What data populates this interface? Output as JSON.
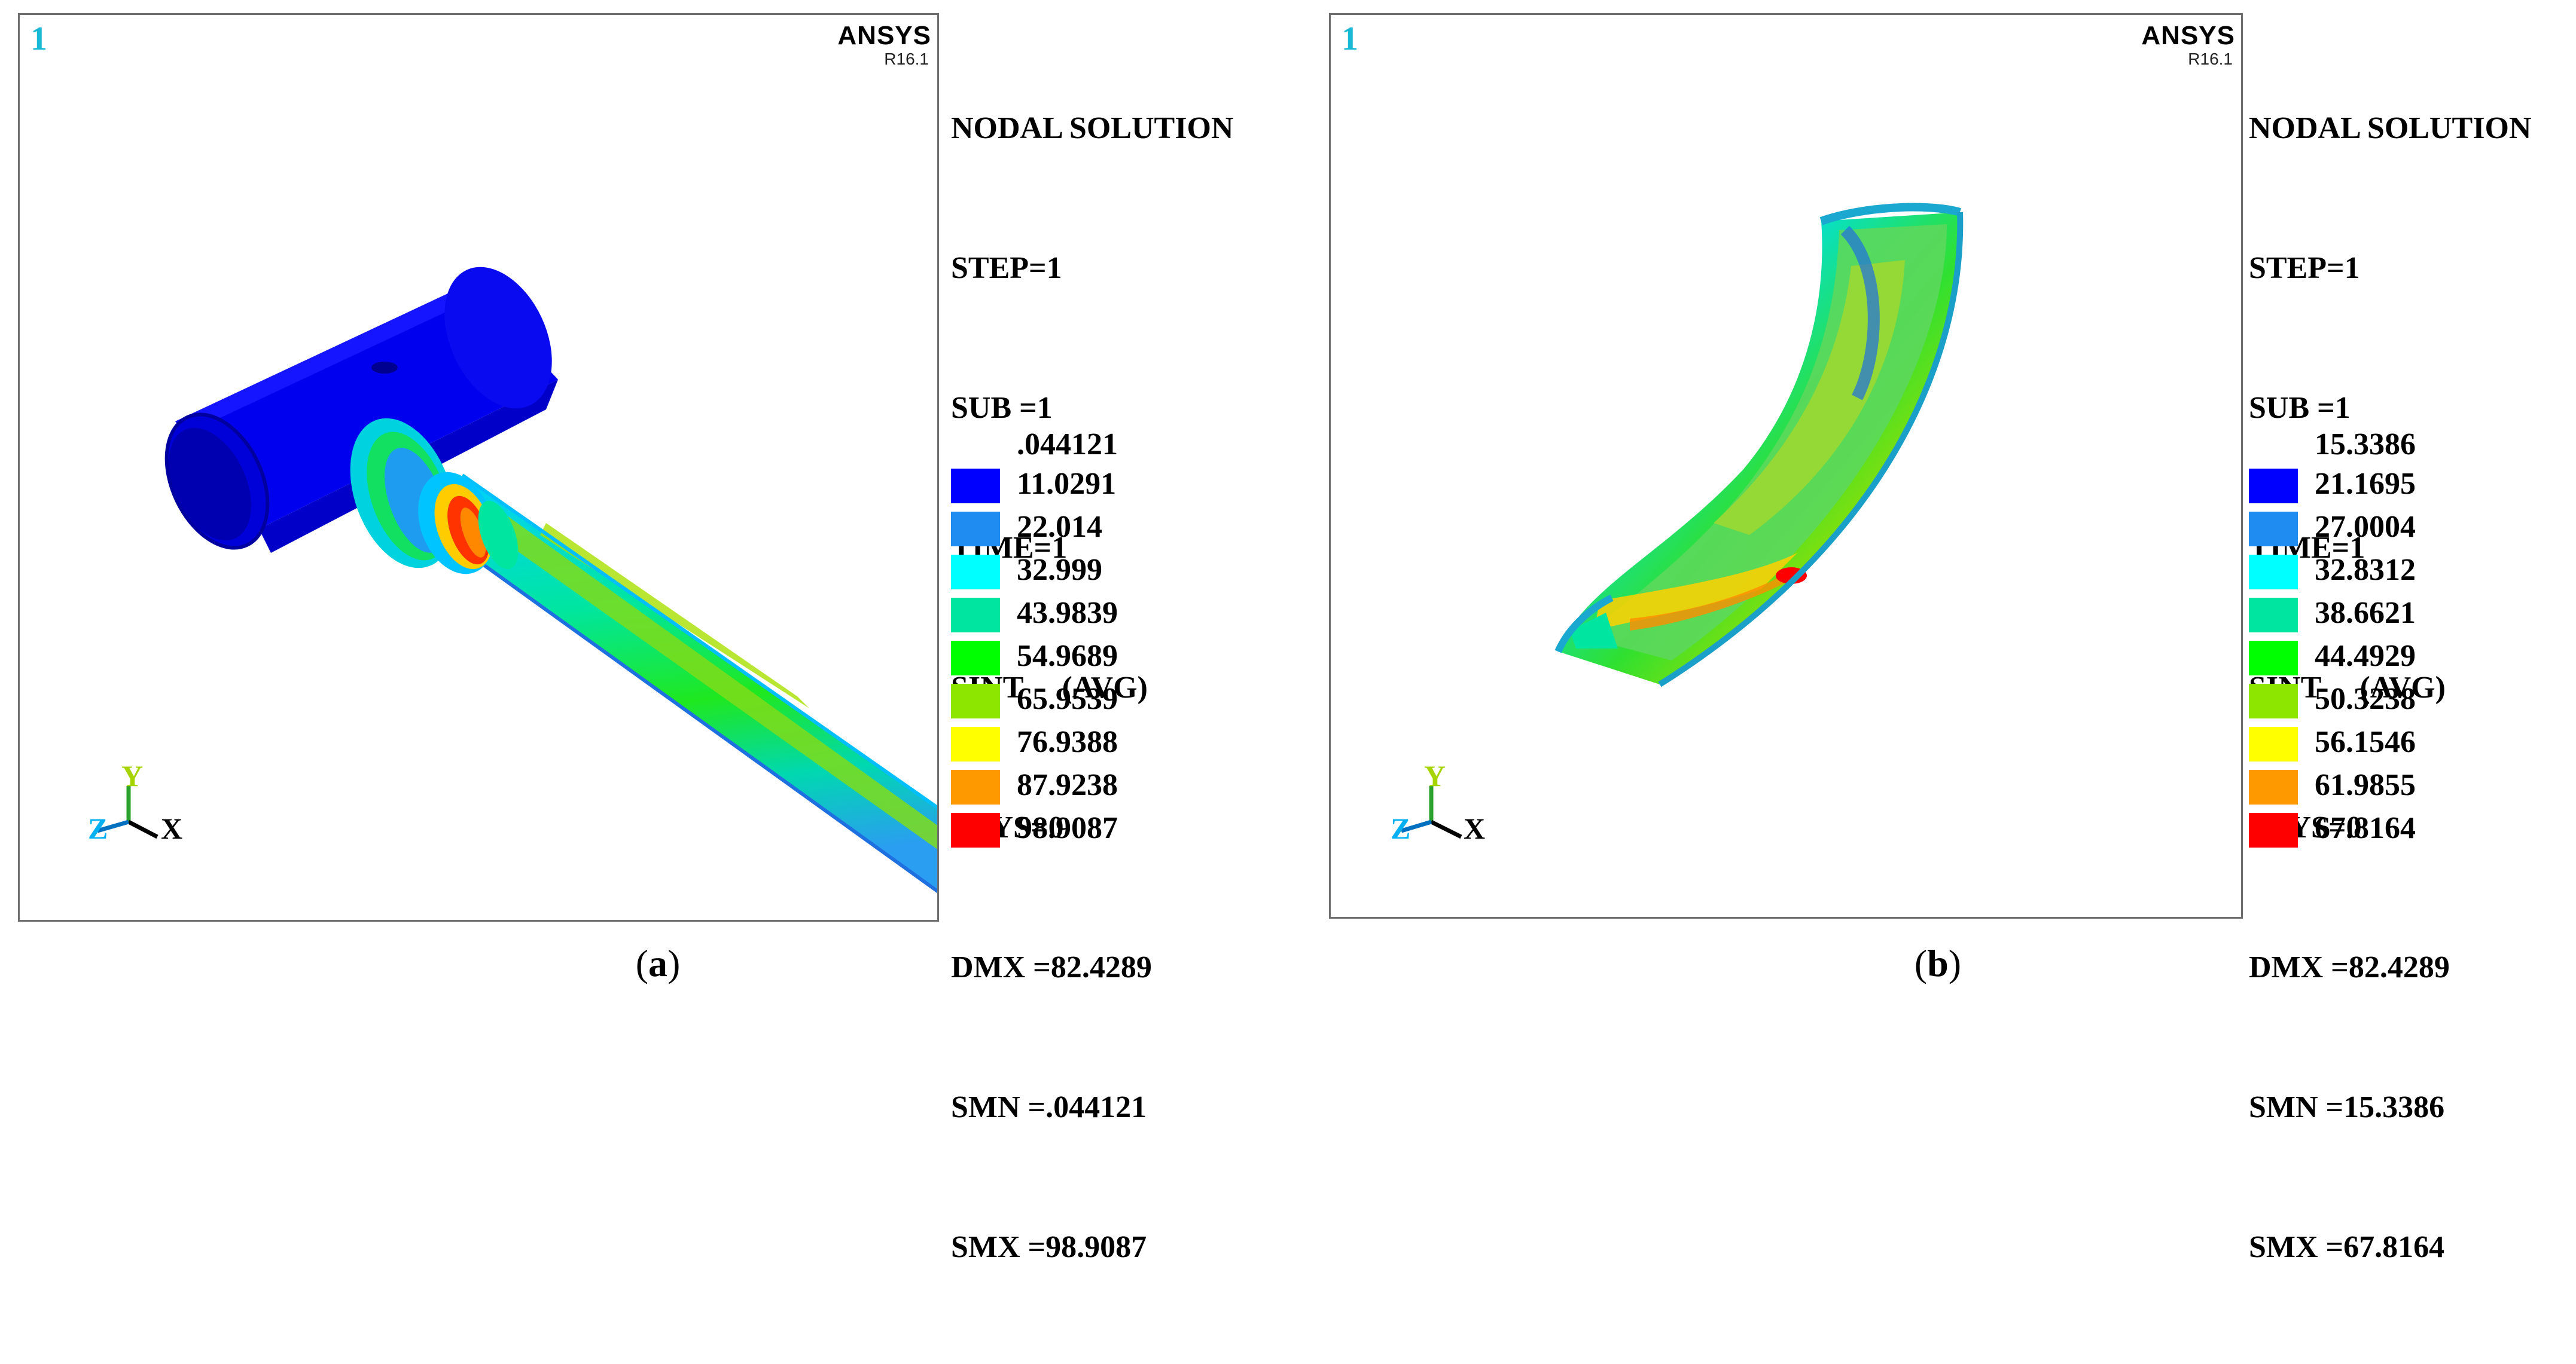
{
  "panels": [
    {
      "id": "a",
      "window_number": "1",
      "brand": "ANSYS",
      "release": "R16.1",
      "info_lines": [
        "NODAL SOLUTION",
        "STEP=1",
        "SUB =1",
        "TIME=1",
        "SINT     (AVG)",
        "RSYS=0",
        "DMX =82.4289",
        "SMN =.044121",
        "SMX =98.9087"
      ],
      "legend_first": ".044121",
      "legend_values": [
        "11.0291",
        "22.014",
        "32.999",
        "43.9839",
        "54.9689",
        "65.9539",
        "76.9388",
        "87.9238",
        "98.9087"
      ],
      "axis": {
        "y": "Y",
        "z": "Z",
        "x": "X"
      },
      "caption_open": "(",
      "caption_letter": "a",
      "caption_close": ")"
    },
    {
      "id": "b",
      "window_number": "1",
      "brand": "ANSYS",
      "release": "R16.1",
      "info_lines": [
        "NODAL SOLUTION",
        "STEP=1",
        "SUB =1",
        "TIME=1",
        "SINT     (AVG)",
        "RSYS=0",
        "DMX =82.4289",
        "SMN =15.3386",
        "SMX =67.8164"
      ],
      "legend_first": "15.3386",
      "legend_values": [
        "21.1695",
        "27.0004",
        "32.8312",
        "38.6621",
        "44.4929",
        "50.3238",
        "56.1546",
        "61.9855",
        "67.8164"
      ],
      "axis": {
        "y": "Y",
        "z": "Z",
        "x": "X"
      },
      "caption_open": "(",
      "caption_letter": "b",
      "caption_close": ")"
    }
  ],
  "legend_colors": [
    "#0000ff",
    "#1e8cf0",
    "#00ffff",
    "#00e6a0",
    "#00ff00",
    "#8ce600",
    "#ffff00",
    "#ff9900",
    "#ff0000"
  ]
}
